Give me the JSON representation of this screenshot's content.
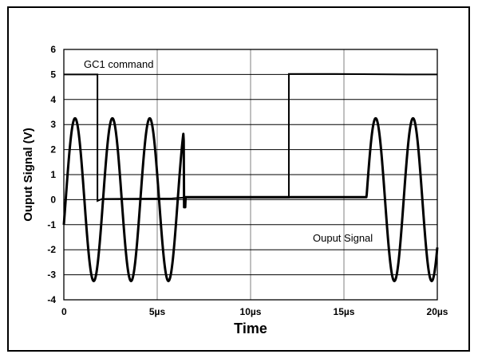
{
  "chart_data": {
    "type": "line",
    "xlabel": "Time",
    "ylabel": "Ouput Signal  (V)",
    "xlim": [
      0,
      20
    ],
    "ylim": [
      -4,
      6
    ],
    "x_ticks": [
      {
        "value": 0,
        "label": "0"
      },
      {
        "value": 5,
        "label": "5µs"
      },
      {
        "value": 10,
        "label": "10µs"
      },
      {
        "value": 15,
        "label": "15µs"
      },
      {
        "value": 20,
        "label": "20µs"
      }
    ],
    "y_ticks": [
      -4,
      -3,
      -2,
      -1,
      0,
      1,
      2,
      3,
      4,
      5,
      6
    ],
    "grid": true,
    "annotations": [
      {
        "text": "GC1 command",
        "x": 1.1,
        "y": 5.4
      },
      {
        "text": "Ouput Signal",
        "x": 13.3,
        "y": -1.4
      }
    ],
    "series": [
      {
        "name": "GC1 command",
        "x": [
          0,
          1.8,
          1.8,
          2.05,
          5.8,
          6.4,
          9.5,
          12.05,
          12.05,
          14.5,
          18.5,
          20
        ],
        "y": [
          5.0,
          5.0,
          -0.05,
          0.03,
          0.05,
          0.08,
          0.08,
          0.08,
          5.02,
          5.02,
          5.0,
          5.0
        ]
      },
      {
        "name": "Ouput Signal",
        "bursts": [
          {
            "x_start": 0.0,
            "x_end": 6.4,
            "amplitude": 3.25,
            "period_us": 2.0,
            "phase_peak_at": 0.6
          },
          {
            "x_start": 16.2,
            "x_end": 20.0,
            "amplitude": 3.25,
            "period_us": 2.0,
            "phase_peak_at": 16.7
          }
        ],
        "baseline": 0.1,
        "spike": {
          "x": 6.45,
          "y_min": -0.3,
          "y_max": 2.35
        }
      }
    ]
  }
}
